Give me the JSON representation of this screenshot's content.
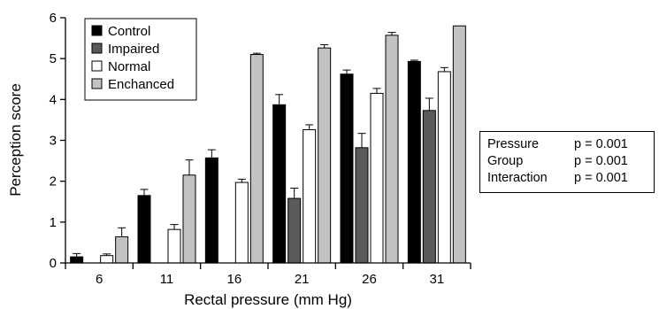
{
  "chart_data": {
    "type": "bar",
    "xlabel": "Rectal pressure (mm Hg)",
    "ylabel": "Perception score",
    "ylim": [
      0,
      6
    ],
    "yticks": [
      0,
      1,
      2,
      3,
      4,
      5,
      6
    ],
    "categories": [
      "6",
      "11",
      "16",
      "21",
      "26",
      "31"
    ],
    "series": [
      {
        "name": "Control",
        "color": "#000000",
        "values": [
          0.15,
          1.65,
          2.57,
          3.87,
          4.62,
          4.93
        ],
        "errors": [
          0.08,
          0.15,
          0.2,
          0.25,
          0.1,
          0.03
        ]
      },
      {
        "name": "Impaired",
        "color": "#5a5a5a",
        "values": [
          0,
          0,
          0,
          1.58,
          2.82,
          3.73
        ],
        "errors": [
          0,
          0,
          0,
          0.25,
          0.35,
          0.3
        ]
      },
      {
        "name": "Normal",
        "color": "#ffffff",
        "values": [
          0.18,
          0.82,
          1.97,
          3.26,
          4.15,
          4.68
        ],
        "errors": [
          0.04,
          0.12,
          0.08,
          0.12,
          0.12,
          0.1
        ]
      },
      {
        "name": "Enchanced",
        "color": "#c2c2c2",
        "values": [
          0.64,
          2.15,
          5.1,
          5.26,
          5.57,
          5.8
        ],
        "errors": [
          0.22,
          0.37,
          0.03,
          0.08,
          0.07,
          0
        ]
      }
    ],
    "legend_position": "top-left",
    "grid": false,
    "annotation": {
      "rows": [
        {
          "label": "Pressure",
          "value": "p = 0.001"
        },
        {
          "label": "Group",
          "value": "p = 0.001"
        },
        {
          "label": "Interaction",
          "value": "p = 0.001"
        }
      ]
    }
  }
}
